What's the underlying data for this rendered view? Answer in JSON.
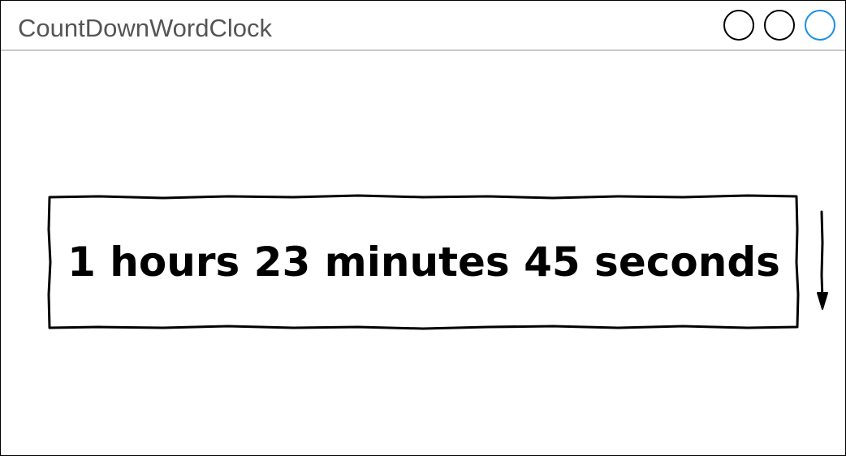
{
  "window": {
    "title": "CountDownWordClock",
    "controls": [
      {
        "name": "window-button-1",
        "border_color": "#000000"
      },
      {
        "name": "window-button-2",
        "border_color": "#000000"
      },
      {
        "name": "window-button-3",
        "border_color": "#1a8fe3"
      }
    ]
  },
  "countdown": {
    "text": "1 hours 23 minutes 45 seconds"
  },
  "scroll": {
    "icon": "arrow-down-icon"
  }
}
